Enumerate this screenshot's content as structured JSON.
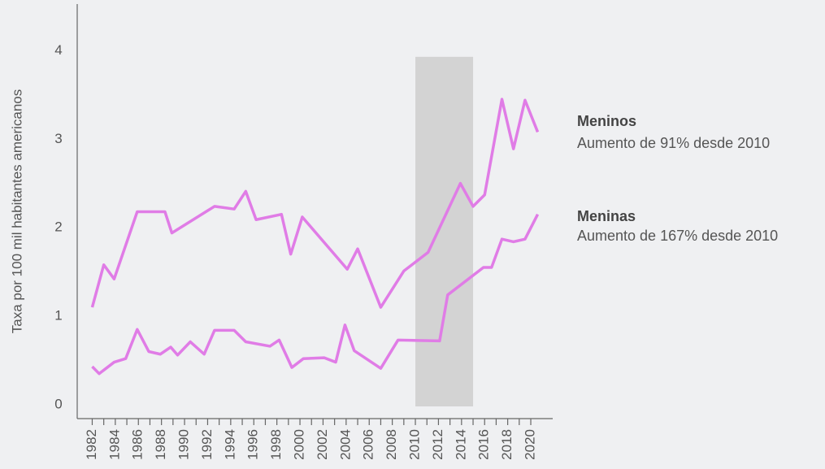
{
  "chart_data": {
    "type": "line",
    "y_label": "Taxa por 100 mil habitantes americanos",
    "xlim": [
      1980.7,
      2021.9
    ],
    "ylim": [
      0,
      4.5
    ],
    "yticks": [
      0,
      1,
      2,
      3,
      4
    ],
    "xticks": [
      1982,
      1984,
      1986,
      1988,
      1990,
      1992,
      1994,
      1996,
      1998,
      2000,
      2002,
      2004,
      2006,
      2008,
      2010,
      2012,
      2014,
      2016,
      2018,
      2020
    ],
    "xminor_ticks": [
      1983,
      1985,
      1987,
      1989,
      1991,
      1993,
      1995,
      1997,
      1999,
      2001,
      2003,
      2005,
      2007,
      2009,
      2011,
      2013,
      2015,
      2017,
      2019
    ],
    "shaded_range": {
      "x": [
        2010,
        2015
      ],
      "y": [
        0,
        3.95
      ],
      "color": "#d3d3d3"
    },
    "series": [
      {
        "name": "Meninos",
        "annotation": "Aumento de 91% desde 2010",
        "color": "#e07ce6",
        "x": [
          1982,
          1983,
          1983.9,
          1985.9,
          1988.3,
          1988.9,
          1992.6,
          1994.3,
          1995.3,
          1996.2,
          1998.4,
          1999.2,
          2000.2,
          2004.1,
          2005,
          2007,
          2009,
          2011.1,
          2013.9,
          2015,
          2016,
          2017.5,
          2018.5,
          2019.5,
          2020.6
        ],
        "values": [
          1.12,
          1.6,
          1.44,
          2.2,
          2.2,
          1.96,
          2.26,
          2.23,
          2.43,
          2.11,
          2.17,
          1.72,
          2.14,
          1.55,
          1.78,
          1.12,
          1.53,
          1.74,
          2.52,
          2.26,
          2.39,
          3.47,
          2.91,
          3.46,
          3.1
        ]
      },
      {
        "name": "Meninas",
        "annotation": "Aumento de 167% desde 2010",
        "color": "#e07ce6",
        "x": [
          1982,
          1982.6,
          1983.9,
          1984.9,
          1985.9,
          1986.9,
          1987.9,
          1988.8,
          1989.4,
          1990.5,
          1991.7,
          1992.6,
          1994.3,
          1995.3,
          1997.4,
          1998.2,
          1999.3,
          2000.3,
          2002.1,
          2003.1,
          2003.9,
          2004.7,
          2007,
          2008.5,
          2012.1,
          2012.8,
          2015.9,
          2016.6,
          2017.5,
          2018.5,
          2019.5,
          2020.6
        ],
        "values": [
          0.45,
          0.37,
          0.5,
          0.54,
          0.87,
          0.62,
          0.59,
          0.67,
          0.58,
          0.73,
          0.59,
          0.86,
          0.86,
          0.73,
          0.68,
          0.75,
          0.44,
          0.54,
          0.55,
          0.5,
          0.92,
          0.63,
          0.43,
          0.75,
          0.74,
          1.26,
          1.57,
          1.57,
          1.89,
          1.86,
          1.89,
          2.17
        ]
      }
    ]
  }
}
